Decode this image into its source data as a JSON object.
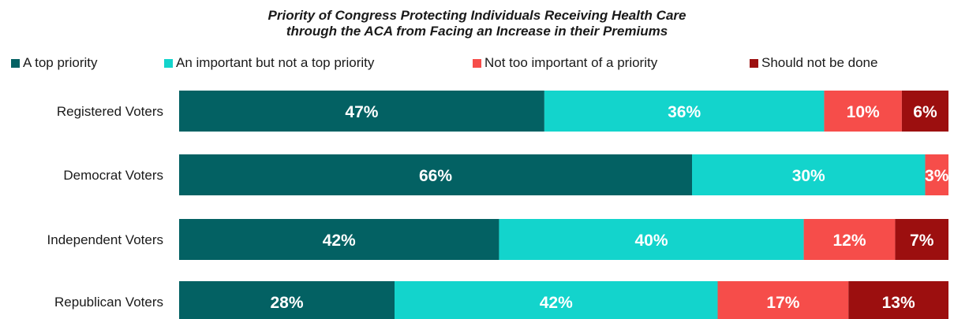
{
  "chart_data": {
    "type": "bar",
    "orientation": "horizontal",
    "stacked": true,
    "title_line1": "Priority of Congress Protecting Individuals Receiving Health Care",
    "title_line2": "through the ACA from Facing an Increase in their Premiums",
    "categories": [
      "Registered Voters",
      "Democrat Voters",
      "Independent Voters",
      "Republican Voters"
    ],
    "series": [
      {
        "name": "A top priority",
        "color": "#036163",
        "values": [
          47,
          66,
          42,
          28
        ]
      },
      {
        "name": "An important but not a top priority",
        "color": "#13d4cc",
        "values": [
          36,
          30,
          40,
          42
        ]
      },
      {
        "name": "Not too important of a priority",
        "color": "#f64d4a",
        "values": [
          10,
          3,
          12,
          17
        ]
      },
      {
        "name": "Should not be done",
        "color": "#9c0f0f",
        "values": [
          6,
          null,
          7,
          13
        ]
      }
    ],
    "data_labels": [
      [
        "47%",
        "36%",
        "10%",
        "6%"
      ],
      [
        "66%",
        "30%",
        "3%",
        ""
      ],
      [
        "42%",
        "40%",
        "12%",
        "7%"
      ],
      [
        "28%",
        "42%",
        "17%",
        "13%"
      ]
    ],
    "legend_position": "top",
    "grid": false
  }
}
